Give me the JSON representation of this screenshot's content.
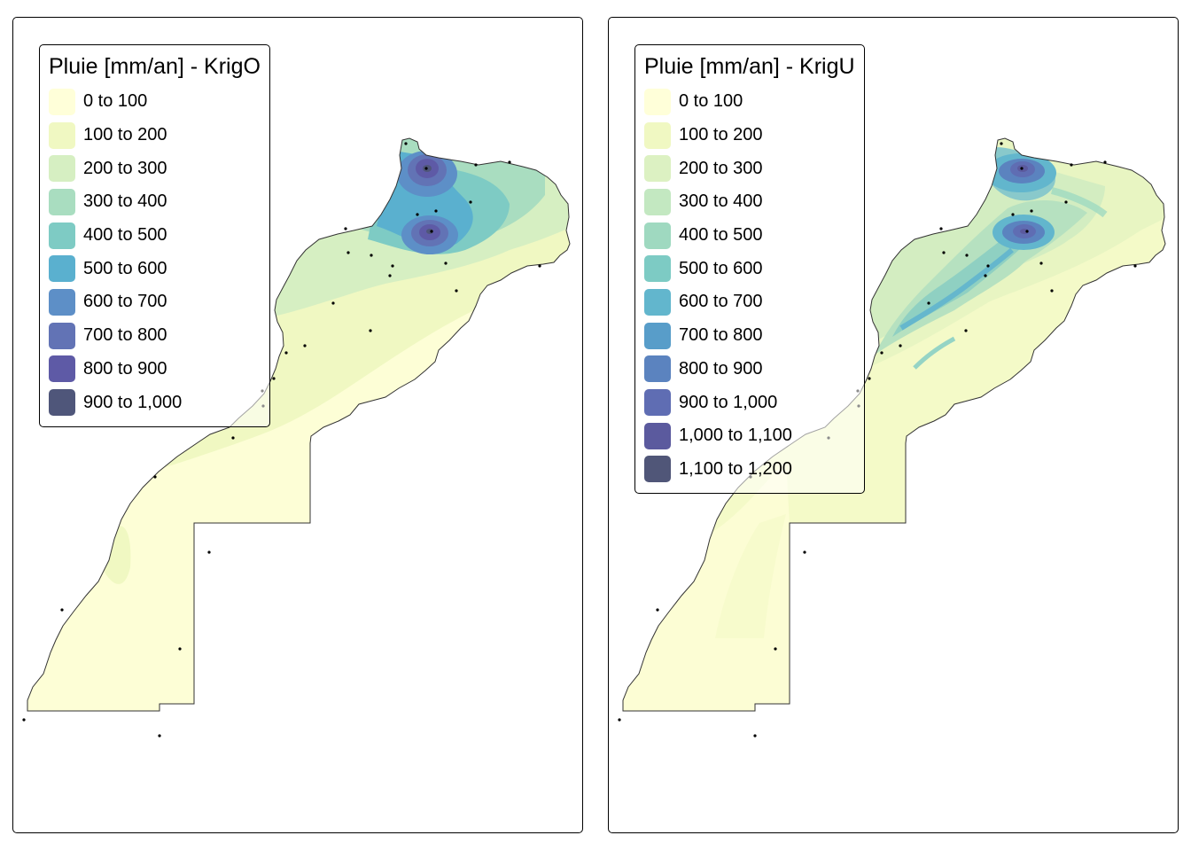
{
  "panels": [
    {
      "legend_title": "Pluie [mm/an] - KrigO",
      "legend": [
        {
          "label": "0 to 100",
          "color": "#ffffd9"
        },
        {
          "label": "100 to 200",
          "color": "#f0f8c2"
        },
        {
          "label": "200 to 300",
          "color": "#d6efc2"
        },
        {
          "label": "300 to 400",
          "color": "#a9ddc0"
        },
        {
          "label": "400 to 500",
          "color": "#7ecbc4"
        },
        {
          "label": "500 to 600",
          "color": "#5ab0cf"
        },
        {
          "label": "600 to 700",
          "color": "#5d8fc7"
        },
        {
          "label": "700 to 800",
          "color": "#6273b5"
        },
        {
          "label": "800 to 900",
          "color": "#5e5aa6"
        },
        {
          "label": "900 to 1,000",
          "color": "#4f567a"
        }
      ]
    },
    {
      "legend_title": "Pluie [mm/an] - KrigU",
      "legend": [
        {
          "label": "0 to 100",
          "color": "#ffffd9"
        },
        {
          "label": "100 to 200",
          "color": "#f0f8c2"
        },
        {
          "label": "200 to 300",
          "color": "#dcf1c2"
        },
        {
          "label": "300 to 400",
          "color": "#c3e8c1"
        },
        {
          "label": "400 to 500",
          "color": "#9fd9c0"
        },
        {
          "label": "500 to 600",
          "color": "#7dcbc4"
        },
        {
          "label": "600 to 700",
          "color": "#62b6cd"
        },
        {
          "label": "700 to 800",
          "color": "#589dc9"
        },
        {
          "label": "800 to 900",
          "color": "#5b83bf"
        },
        {
          "label": "900 to 1,000",
          "color": "#5f6db3"
        },
        {
          "label": "1,000 to 1,100",
          "color": "#5b5a9e"
        },
        {
          "label": "1,100 to 1,200",
          "color": "#505678"
        }
      ]
    }
  ]
}
